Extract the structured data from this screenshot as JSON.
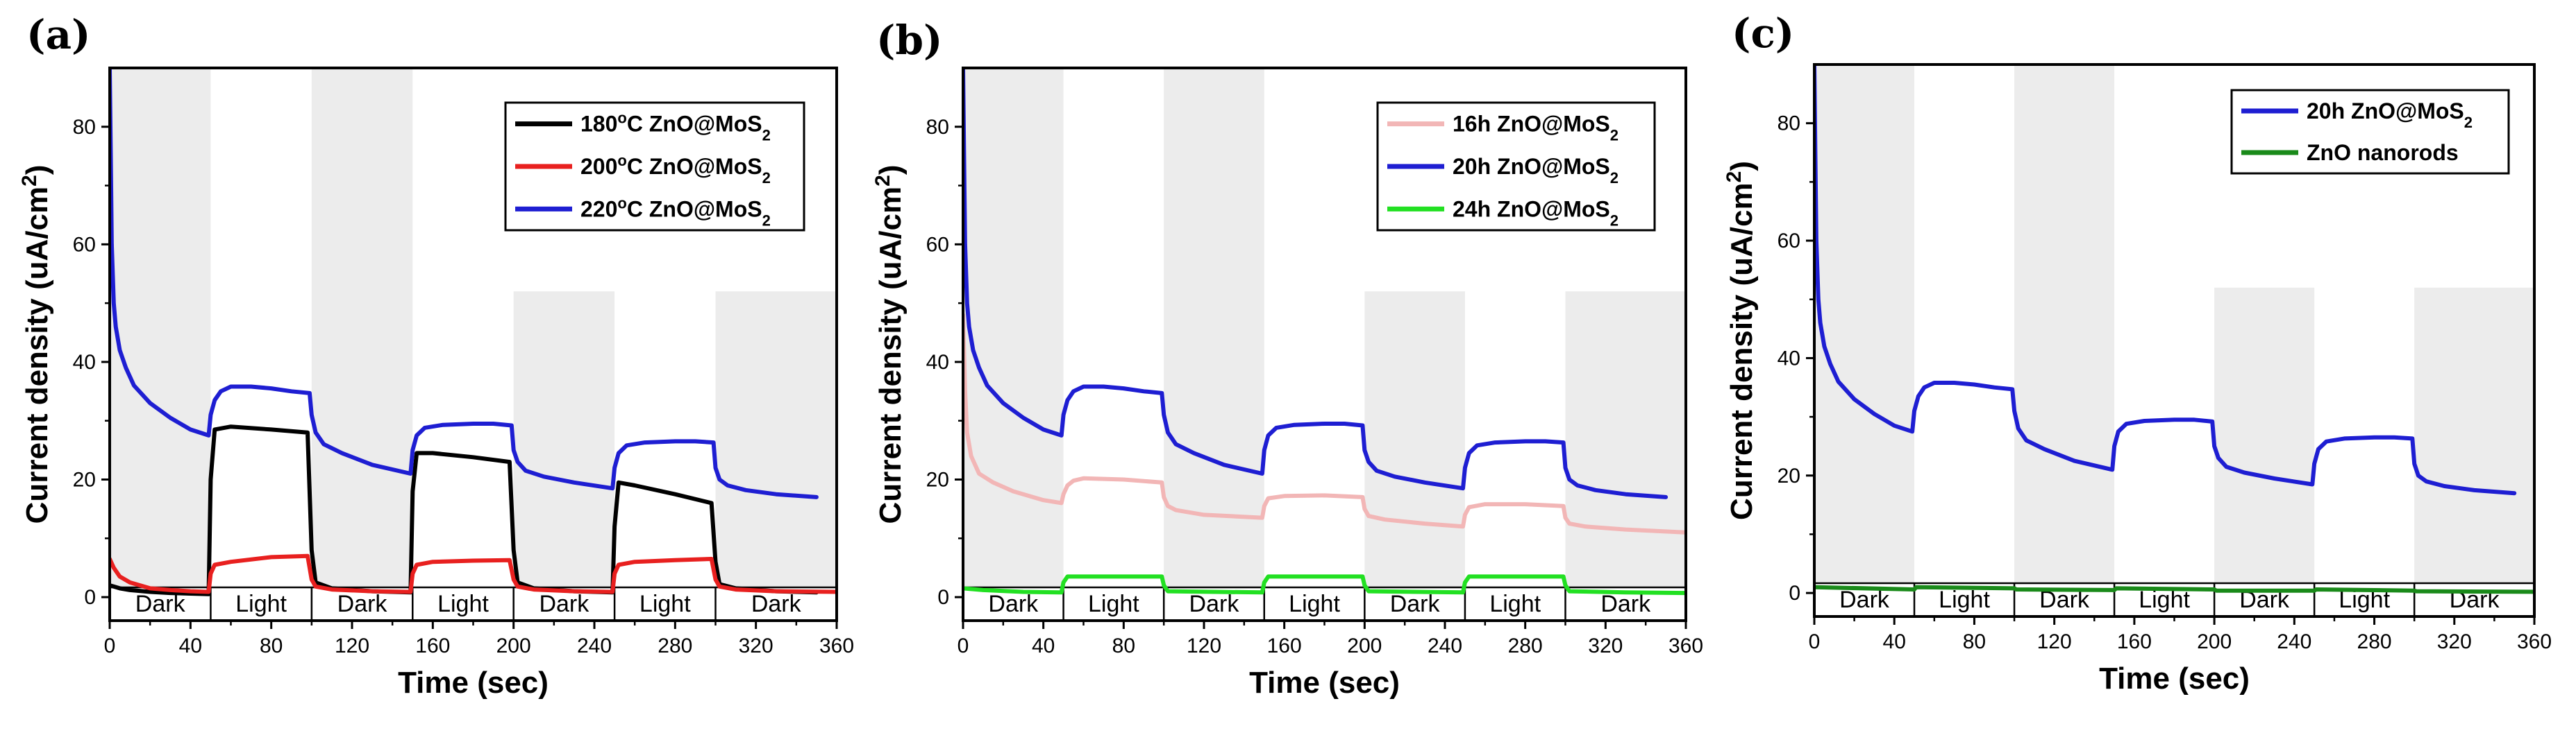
{
  "chart_data": [
    {
      "panel": "(a)",
      "type": "line",
      "xlabel": "Time (sec)",
      "ylabel": "Current density (uA/cm",
      "ylabel_sup": "2",
      "ylabel_end": ")",
      "xlim": [
        0,
        360
      ],
      "ylim": [
        -4,
        90
      ],
      "xticks": [
        "0",
        "40",
        "80",
        "120",
        "160",
        "200",
        "240",
        "280",
        "320",
        "360"
      ],
      "yticks": [
        "0",
        "20",
        "40",
        "60",
        "80"
      ],
      "phases": [
        {
          "label": "Dark",
          "start": 0,
          "end": 50,
          "shade_top": 90
        },
        {
          "label": "Light",
          "start": 50,
          "end": 100
        },
        {
          "label": "Dark",
          "start": 100,
          "end": 150,
          "shade_top": 90
        },
        {
          "label": "Light",
          "start": 150,
          "end": 200
        },
        {
          "label": "Dark",
          "start": 200,
          "end": 250,
          "shade_top": 52
        },
        {
          "label": "Light",
          "start": 250,
          "end": 300
        },
        {
          "label": "Dark",
          "start": 300,
          "end": 360,
          "shade_top": 52
        }
      ],
      "legend_pos": "top-right",
      "series": [
        {
          "name": "180",
          "unit": "o",
          "suffix": "C ZnO@MoS",
          "sub": "2",
          "color": "#000000",
          "x": [
            0,
            2,
            5,
            10,
            20,
            30,
            40,
            49,
            50,
            52,
            60,
            80,
            98,
            100,
            102,
            110,
            130,
            149,
            150,
            152,
            160,
            180,
            198,
            200,
            202,
            210,
            230,
            249,
            250,
            252,
            260,
            280,
            298,
            300,
            302,
            310,
            330,
            350
          ],
          "y": [
            2,
            1.8,
            1.5,
            1.2,
            0.9,
            0.7,
            0.6,
            0.5,
            20,
            28.5,
            29,
            28.5,
            28,
            8,
            2.5,
            1.5,
            1.0,
            0.8,
            18,
            24.5,
            24.5,
            23.8,
            23,
            8,
            2.5,
            1.5,
            1.0,
            0.8,
            12,
            19.5,
            19,
            17.5,
            16,
            6,
            2.2,
            1.5,
            1.0,
            0.8
          ]
        },
        {
          "name": "200",
          "unit": "o",
          "suffix": "C ZnO@MoS",
          "sub": "2",
          "color": "#e8201f",
          "x": [
            0,
            2,
            5,
            10,
            20,
            30,
            40,
            49,
            50,
            52,
            60,
            80,
            98,
            100,
            102,
            110,
            130,
            149,
            150,
            152,
            160,
            180,
            198,
            200,
            202,
            210,
            230,
            249,
            250,
            252,
            260,
            280,
            298,
            300,
            302,
            310,
            330,
            360
          ],
          "y": [
            6.5,
            5,
            3.5,
            2.5,
            1.5,
            1.2,
            1.0,
            0.9,
            4,
            5.5,
            6,
            6.8,
            7,
            3,
            1.8,
            1.3,
            1.0,
            0.9,
            4,
            5.5,
            6,
            6.2,
            6.3,
            3,
            1.8,
            1.3,
            1.0,
            0.9,
            4,
            5.5,
            6,
            6.3,
            6.5,
            3,
            1.8,
            1.3,
            1.0,
            0.9
          ]
        },
        {
          "name": "220",
          "unit": "o",
          "suffix": "C ZnO@MoS",
          "sub": "2",
          "color": "#1e1ed2",
          "x": [
            0,
            0.5,
            1,
            2,
            3,
            5,
            8,
            12,
            20,
            30,
            40,
            49,
            50,
            52,
            55,
            60,
            70,
            80,
            90,
            99,
            100,
            102,
            106,
            115,
            130,
            149,
            150,
            152,
            156,
            165,
            180,
            190,
            199,
            200,
            202,
            206,
            215,
            230,
            249,
            250,
            252,
            256,
            265,
            280,
            290,
            299,
            300,
            302,
            306,
            315,
            330,
            350
          ],
          "y": [
            90,
            75,
            60,
            50,
            46,
            42,
            39,
            36,
            33,
            30.5,
            28.5,
            27.5,
            31,
            33.5,
            35,
            35.8,
            35.8,
            35.5,
            35,
            34.7,
            31,
            28,
            26,
            24.5,
            22.5,
            21,
            25,
            27.5,
            28.8,
            29.3,
            29.5,
            29.5,
            29.2,
            25,
            23,
            21.5,
            20.5,
            19.5,
            18.5,
            22,
            24.5,
            25.8,
            26.3,
            26.5,
            26.5,
            26.3,
            22,
            20,
            19,
            18.2,
            17.5,
            17
          ]
        }
      ]
    },
    {
      "panel": "(b)",
      "type": "line",
      "xlabel": "Time (sec)",
      "ylabel": "Current density (uA/cm",
      "ylabel_sup": "2",
      "ylabel_end": ")",
      "xlim": [
        0,
        360
      ],
      "ylim": [
        -4,
        90
      ],
      "xticks": [
        "0",
        "40",
        "80",
        "120",
        "160",
        "200",
        "240",
        "280",
        "320",
        "360"
      ],
      "yticks": [
        "0",
        "20",
        "40",
        "60",
        "80"
      ],
      "phases": [
        {
          "label": "Dark",
          "start": 0,
          "end": 50,
          "shade_top": 90
        },
        {
          "label": "Light",
          "start": 50,
          "end": 100
        },
        {
          "label": "Dark",
          "start": 100,
          "end": 150,
          "shade_top": 90
        },
        {
          "label": "Light",
          "start": 150,
          "end": 200
        },
        {
          "label": "Dark",
          "start": 200,
          "end": 250,
          "shade_top": 52
        },
        {
          "label": "Light",
          "start": 250,
          "end": 300
        },
        {
          "label": "Dark",
          "start": 300,
          "end": 360,
          "shade_top": 52
        }
      ],
      "legend_pos": "top-right",
      "series": [
        {
          "name": "16h ZnO@MoS",
          "sub": "2",
          "color": "#f2b6b6",
          "x": [
            0,
            1,
            2,
            4,
            8,
            15,
            25,
            40,
            49,
            50,
            52,
            55,
            60,
            80,
            99,
            100,
            102,
            106,
            120,
            149,
            150,
            152,
            160,
            180,
            199,
            200,
            202,
            210,
            230,
            249,
            250,
            252,
            260,
            280,
            299,
            300,
            302,
            310,
            330,
            360
          ],
          "y": [
            48,
            35,
            28,
            24,
            21,
            19.5,
            18,
            16.5,
            16,
            17.5,
            19,
            19.8,
            20.2,
            20,
            19.5,
            17,
            15.5,
            14.8,
            14,
            13.5,
            15.5,
            16.8,
            17.2,
            17.3,
            17,
            15,
            13.8,
            13.2,
            12.5,
            12,
            14,
            15.3,
            15.8,
            15.8,
            15.5,
            13.5,
            12.5,
            12,
            11.5,
            11
          ]
        },
        {
          "name": "20h ZnO@MoS",
          "sub": "2",
          "color": "#1e1ed2",
          "x": [
            0,
            0.5,
            1,
            2,
            3,
            5,
            8,
            12,
            20,
            30,
            40,
            49,
            50,
            52,
            55,
            60,
            70,
            80,
            90,
            99,
            100,
            102,
            106,
            115,
            130,
            149,
            150,
            152,
            156,
            165,
            180,
            190,
            199,
            200,
            202,
            206,
            215,
            230,
            249,
            250,
            252,
            256,
            265,
            280,
            290,
            299,
            300,
            302,
            306,
            315,
            330,
            350
          ],
          "y": [
            90,
            75,
            60,
            50,
            46,
            42,
            39,
            36,
            33,
            30.5,
            28.5,
            27.5,
            31,
            33.5,
            35,
            35.8,
            35.8,
            35.5,
            35,
            34.7,
            31,
            28,
            26,
            24.5,
            22.5,
            21,
            25,
            27.5,
            28.8,
            29.3,
            29.5,
            29.5,
            29.2,
            25,
            23,
            21.5,
            20.5,
            19.5,
            18.5,
            22,
            24.5,
            25.8,
            26.3,
            26.5,
            26.5,
            26.3,
            22,
            20,
            19,
            18.2,
            17.5,
            17
          ]
        },
        {
          "name": "24h ZnO@MoS",
          "sub": "2",
          "color": "#22e022",
          "x": [
            0,
            10,
            30,
            49,
            50,
            52,
            99,
            100,
            102,
            149,
            150,
            152,
            199,
            200,
            202,
            249,
            250,
            252,
            299,
            300,
            302,
            330,
            360
          ],
          "y": [
            1.5,
            1.2,
            0.9,
            0.8,
            2.5,
            3.5,
            3.5,
            2,
            1,
            0.8,
            2.5,
            3.5,
            3.5,
            2,
            1,
            0.8,
            2.5,
            3.5,
            3.5,
            2,
            1,
            0.8,
            0.7
          ]
        }
      ]
    },
    {
      "panel": "(c)",
      "type": "line",
      "xlabel": "Time (sec)",
      "ylabel": "Current density (uA/cm",
      "ylabel_sup": "2",
      "ylabel_end": ")",
      "xlim": [
        0,
        360
      ],
      "ylim": [
        -4,
        90
      ],
      "xticks": [
        "0",
        "40",
        "80",
        "120",
        "160",
        "200",
        "240",
        "280",
        "320",
        "360"
      ],
      "yticks": [
        "0",
        "20",
        "40",
        "60",
        "80"
      ],
      "phases": [
        {
          "label": "Dark",
          "start": 0,
          "end": 50,
          "shade_top": 90
        },
        {
          "label": "Light",
          "start": 50,
          "end": 100
        },
        {
          "label": "Dark",
          "start": 100,
          "end": 150,
          "shade_top": 90
        },
        {
          "label": "Light",
          "start": 150,
          "end": 200
        },
        {
          "label": "Dark",
          "start": 200,
          "end": 250,
          "shade_top": 52
        },
        {
          "label": "Light",
          "start": 250,
          "end": 300
        },
        {
          "label": "Dark",
          "start": 300,
          "end": 360,
          "shade_top": 52
        }
      ],
      "legend_pos": "top-right",
      "series": [
        {
          "name": "20h ZnO@MoS",
          "sub": "2",
          "color": "#1e1ed2",
          "x": [
            0,
            0.5,
            1,
            2,
            3,
            5,
            8,
            12,
            20,
            30,
            40,
            49,
            50,
            52,
            55,
            60,
            70,
            80,
            90,
            99,
            100,
            102,
            106,
            115,
            130,
            149,
            150,
            152,
            156,
            165,
            180,
            190,
            199,
            200,
            202,
            206,
            215,
            230,
            249,
            250,
            252,
            256,
            265,
            280,
            290,
            299,
            300,
            302,
            306,
            315,
            330,
            350
          ],
          "y": [
            90,
            75,
            60,
            50,
            46,
            42,
            39,
            36,
            33,
            30.5,
            28.5,
            27.5,
            31,
            33.5,
            35,
            35.8,
            35.8,
            35.5,
            35,
            34.7,
            31,
            28,
            26,
            24.5,
            22.5,
            21,
            25,
            27.5,
            28.8,
            29.3,
            29.5,
            29.5,
            29.2,
            25,
            23,
            21.5,
            20.5,
            19.5,
            18.5,
            22,
            24.5,
            25.8,
            26.3,
            26.5,
            26.5,
            26.3,
            22,
            20,
            19,
            18.2,
            17.5,
            17
          ]
        },
        {
          "name": "ZnO nanorods",
          "sub": "",
          "color": "#1a8a1a",
          "x": [
            0,
            50,
            51,
            100,
            101,
            150,
            151,
            200,
            201,
            250,
            251,
            300,
            301,
            360
          ],
          "y": [
            1.0,
            0.6,
            1.0,
            0.8,
            0.6,
            0.5,
            0.8,
            0.6,
            0.4,
            0.4,
            0.6,
            0.4,
            0.3,
            0.2
          ]
        }
      ]
    }
  ]
}
